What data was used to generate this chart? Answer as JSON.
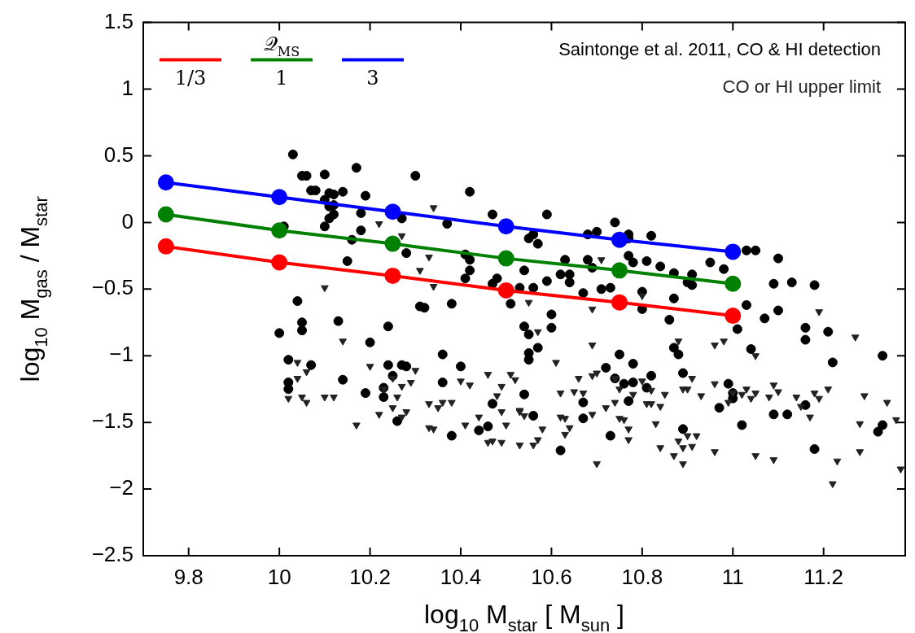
{
  "chart_data": {
    "type": "scatter",
    "xlabel": "log$_{10}$ M$_{star}$ [ M$_{sun}$ ]",
    "ylabel": "log$_{10}$ M$_{gas}$ / M$_{star}$",
    "legend_title": "𝒬$_{MS}$",
    "legend": "top",
    "grid": false,
    "line_style": "solid",
    "xlim": [
      9.7,
      11.38
    ],
    "xticks": [
      9.8,
      10,
      10.2,
      10.4,
      10.6,
      10.8,
      11,
      11.2
    ],
    "ylim": [
      -2.5,
      1.5
    ],
    "yticks": [
      {
        "value": -2.5,
        "label": "−2.5"
      },
      {
        "value": -2,
        "label": "−2"
      },
      {
        "value": -1.5,
        "label": "−1.5"
      },
      {
        "value": -1,
        "label": "−1"
      },
      {
        "value": -0.5,
        "label": "−0.5"
      },
      0,
      0.5,
      1,
      1.5
    ],
    "series": [
      {
        "name": "Saintonge et al. 2011, CO & HI detection",
        "marker": "circle",
        "color": "#000000",
        "x": [
          10.0,
          10.03,
          10.05,
          10.06,
          10.07,
          10.08,
          10.1,
          10.11,
          10.12,
          10.1,
          10.11,
          10.12,
          10.11,
          10.12,
          10.1,
          10.01,
          10.14,
          10.17,
          10.19,
          10.18,
          10.18,
          10.16,
          10.15,
          10.3,
          10.27,
          10.28,
          10.42,
          10.47,
          10.37,
          10.41,
          10.42,
          10.42,
          10.41,
          10.47,
          10.48,
          10.53,
          10.51,
          10.54,
          10.55,
          10.38,
          10.31,
          10.32,
          10.24,
          10.13,
          10.04,
          10.05,
          10.05,
          10.2,
          10.54,
          10.55,
          10.59,
          10.56,
          10.57,
          10.68,
          10.7,
          10.74,
          10.77,
          10.77,
          10.82,
          10.63,
          10.68,
          10.69,
          10.77,
          10.78,
          10.81,
          10.84,
          10.87,
          10.91,
          10.9,
          10.91,
          10.95,
          10.98,
          10.59,
          10.62,
          10.64,
          10.64,
          10.56,
          10.67,
          10.71,
          10.73,
          10.8,
          10.8,
          10.87,
          10.6,
          10.6,
          10.86,
          11.03,
          11.05,
          11.1,
          11.09,
          11.13,
          11.18,
          11.03,
          11.07,
          11.1,
          11.01,
          11.16,
          11.16,
          11.21,
          10.02,
          10.07,
          10.02,
          10.02,
          10.14,
          10.19,
          10.24,
          10.27,
          10.28,
          10.25,
          10.23,
          10.23,
          10.26,
          10.36,
          10.36,
          10.4,
          10.38,
          10.47,
          10.46,
          10.44,
          10.54,
          10.57,
          10.55,
          10.55,
          10.75,
          10.78,
          10.72,
          10.74,
          10.76,
          10.78,
          10.77,
          10.82,
          10.81,
          10.87,
          10.88,
          10.89,
          11.04,
          10.99,
          11.0,
          11.0,
          10.97,
          11.02,
          11.09,
          11.12,
          11.16,
          11.18,
          11.22,
          11.33,
          11.33,
          11.32,
          10.56,
          10.67,
          10.67,
          10.73,
          10.62,
          10.89
        ],
        "values": [
          -0.83,
          0.51,
          0.35,
          0.35,
          0.24,
          0.24,
          0.36,
          0.22,
          0.21,
          0.17,
          0.12,
          0.13,
          0.03,
          0.06,
          -0.03,
          -0.03,
          0.23,
          0.41,
          0.2,
          0.07,
          -0.06,
          -0.13,
          -0.29,
          0.35,
          0.03,
          -0.23,
          0.23,
          0.06,
          -0.01,
          -0.24,
          -0.28,
          -0.36,
          -0.42,
          -0.46,
          -0.42,
          -0.49,
          -0.61,
          -0.36,
          -0.12,
          -0.61,
          -0.63,
          -0.64,
          -0.78,
          -0.74,
          -0.59,
          -0.75,
          -0.81,
          -0.9,
          -0.78,
          -0.84,
          0.06,
          -0.09,
          -0.16,
          -0.09,
          -0.07,
          0.0,
          -0.09,
          -0.12,
          -0.1,
          -0.28,
          -0.28,
          -0.34,
          -0.25,
          -0.3,
          -0.29,
          -0.33,
          -0.38,
          -0.39,
          -0.45,
          -0.47,
          -0.3,
          -0.35,
          -0.44,
          -0.39,
          -0.39,
          -0.45,
          -0.49,
          -0.53,
          -0.5,
          -0.49,
          -0.52,
          -0.65,
          -0.57,
          -0.69,
          -0.79,
          -0.73,
          -0.21,
          -0.21,
          -0.27,
          -0.46,
          -0.45,
          -0.47,
          -0.62,
          -0.72,
          -0.66,
          -0.8,
          -0.79,
          -0.88,
          -0.82,
          -1.03,
          -1.07,
          -1.2,
          -1.25,
          -1.18,
          -1.28,
          -1.07,
          -1.07,
          -1.08,
          -1.15,
          -1.24,
          -1.31,
          -1.49,
          -0.99,
          -1.2,
          -1.08,
          -1.6,
          -1.36,
          -1.53,
          -1.56,
          -1.29,
          -0.94,
          -0.98,
          -1.03,
          -0.99,
          -1.06,
          -1.09,
          -1.17,
          -1.21,
          -1.2,
          -1.34,
          -1.15,
          -1.24,
          -0.94,
          -0.99,
          -1.13,
          -0.95,
          -1.21,
          -1.28,
          -1.32,
          -1.39,
          -1.52,
          -1.44,
          -1.44,
          -1.37,
          -1.7,
          -1.05,
          -1.0,
          -1.52,
          -1.57,
          -1.45,
          -1.35,
          -1.47,
          -1.6,
          -1.71,
          -1.55
        ]
      },
      {
        "name": "CO or HI upper limit",
        "marker": "triangle",
        "color": "#222222",
        "x": [
          10.34,
          10.22,
          10.27,
          10.33,
          10.31,
          10.34,
          10.1,
          10.14,
          10.71,
          10.8,
          10.55,
          10.69,
          10.57,
          11.19,
          11.27,
          10.88,
          10.96,
          10.98,
          10.69,
          10.04,
          10.06,
          10.04,
          10.02,
          10.05,
          10.06,
          10.1,
          10.12,
          10.17,
          10.2,
          10.22,
          10.25,
          10.23,
          10.27,
          10.26,
          10.25,
          10.27,
          10.28,
          10.29,
          10.3,
          10.33,
          10.33,
          10.34,
          10.35,
          10.36,
          10.38,
          10.4,
          10.42,
          10.41,
          10.44,
          10.46,
          10.49,
          10.48,
          10.49,
          10.5,
          10.46,
          10.47,
          10.49,
          10.51,
          10.52,
          10.53,
          10.53,
          10.61,
          10.66,
          10.65,
          10.67,
          10.69,
          10.7,
          10.62,
          10.53,
          10.54,
          10.58,
          10.57,
          10.56,
          10.62,
          10.63,
          10.64,
          10.63,
          10.69,
          10.72,
          10.74,
          10.74,
          10.75,
          10.75,
          10.76,
          10.77,
          10.77,
          10.7,
          10.78,
          10.8,
          10.82,
          10.81,
          10.82,
          10.84,
          10.85,
          10.83,
          10.84,
          10.87,
          10.88,
          10.89,
          10.89,
          10.9,
          10.91,
          10.92,
          10.89,
          10.9,
          10.91,
          10.93,
          10.96,
          10.96,
          11.0,
          10.99,
          11.02,
          11.03,
          11.04,
          11.05,
          11.05,
          11.05,
          11.08,
          11.09,
          11.1,
          11.09,
          11.14,
          11.15,
          11.17,
          11.18,
          11.19,
          11.21,
          11.23,
          11.22,
          11.29,
          11.28,
          11.28,
          11.34,
          11.36,
          11.37
        ],
        "values": [
          0.11,
          -0.01,
          -0.1,
          -0.26,
          -0.36,
          -0.48,
          -0.49,
          -0.89,
          -0.28,
          -0.55,
          -0.6,
          -0.65,
          -0.82,
          -0.67,
          -0.86,
          -0.89,
          -0.92,
          -0.89,
          -0.92,
          -1.05,
          -1.12,
          -1.17,
          -1.32,
          -1.31,
          -1.35,
          -1.31,
          -1.31,
          -1.52,
          -1.08,
          -1.44,
          -1.17,
          -1.25,
          -1.23,
          -1.31,
          -1.39,
          -1.46,
          -1.42,
          -1.2,
          -1.11,
          -1.36,
          -1.54,
          -1.55,
          -1.39,
          -1.35,
          -1.35,
          -1.19,
          -1.22,
          -1.52,
          -1.46,
          -1.14,
          -1.23,
          -1.3,
          -1.42,
          -1.52,
          -1.65,
          -1.64,
          -1.65,
          -1.14,
          -1.18,
          -1.41,
          -1.67,
          -1.05,
          -1.17,
          -1.27,
          -1.28,
          -1.15,
          -1.13,
          -1.28,
          -1.42,
          -1.45,
          -1.55,
          -1.63,
          -1.67,
          -1.46,
          -1.47,
          -1.54,
          -1.59,
          -1.44,
          -1.39,
          -1.35,
          -1.17,
          -1.25,
          -1.47,
          -1.48,
          -1.55,
          -1.63,
          -1.81,
          -1.29,
          -1.19,
          -1.26,
          -1.36,
          -1.36,
          -1.38,
          -1.29,
          -1.51,
          -1.69,
          -1.75,
          -1.64,
          -1.69,
          -1.81,
          -1.6,
          -1.68,
          -1.6,
          -1.25,
          -1.25,
          -1.17,
          -1.3,
          -1.21,
          -1.72,
          -1.28,
          -1.35,
          -1.29,
          -1.25,
          -1.32,
          -1.28,
          -1.0,
          -1.75,
          -1.31,
          -1.22,
          -1.27,
          -1.78,
          -1.31,
          -1.38,
          -1.46,
          -1.28,
          -1.32,
          -1.25,
          -1.79,
          -1.96,
          -1.3,
          -1.51,
          -1.72,
          -1.35,
          -1.48,
          -1.85
        ]
      },
      {
        "name": "1/3",
        "type": "line",
        "marker": "circle",
        "color": "#ff0000",
        "x": [
          9.75,
          10,
          10.25,
          10.5,
          10.75,
          11
        ],
        "values": [
          -0.18,
          -0.3,
          -0.4,
          -0.51,
          -0.6,
          -0.7
        ]
      },
      {
        "name": "1",
        "type": "line",
        "marker": "circle",
        "color": "#008000",
        "x": [
          9.75,
          10,
          10.25,
          10.5,
          10.75,
          11
        ],
        "values": [
          0.06,
          -0.06,
          -0.16,
          -0.27,
          -0.36,
          -0.46
        ]
      },
      {
        "name": "3",
        "type": "line",
        "marker": "circle",
        "color": "#0000ff",
        "x": [
          9.75,
          10,
          10.25,
          10.5,
          10.75,
          11
        ],
        "values": [
          0.3,
          0.19,
          0.08,
          -0.03,
          -0.13,
          -0.22
        ]
      }
    ]
  }
}
